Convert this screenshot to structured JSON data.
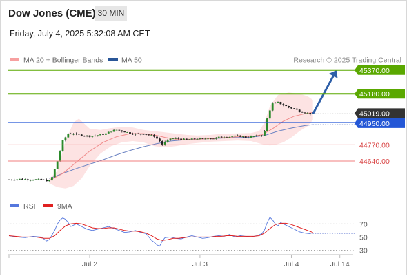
{
  "header": {
    "title": "Dow Jones (CME)",
    "interval": "30 MIN"
  },
  "datetime": "Friday, July 4, 2025 5:32:08 AM CET",
  "legend": {
    "ma20_bb": "MA 20 + Bollinger Bands",
    "ma50": "MA 50",
    "credit": "Research © 2025 Trading Central"
  },
  "colors": {
    "resistance": "#5aa800",
    "support": "#f07f7f",
    "pivot": "#2457d6",
    "current": "#333333",
    "bollinger_fill": "#fcd9d9",
    "ma20": "#f08a8a",
    "ma50": "#6a82c2",
    "rsi": "#5577dd",
    "rsi_ma": "#e02020",
    "arrow": "#2e5fa8"
  },
  "levels": [
    {
      "label": "45370.00",
      "value": 45370,
      "kind": "resistance"
    },
    {
      "label": "45180.00",
      "value": 45180,
      "kind": "resistance"
    },
    {
      "label": "45019.00",
      "value": 45019,
      "kind": "current"
    },
    {
      "label": "44950.00",
      "value": 44950,
      "kind": "pivot"
    },
    {
      "label": "44770.00",
      "value": 44770,
      "kind": "support"
    },
    {
      "label": "44640.00",
      "value": 44640,
      "kind": "support"
    }
  ],
  "rsi_legend": {
    "rsi": "RSI",
    "ma": "9MA"
  },
  "chart_data": {
    "type": "candlestick",
    "ylim": [
      44380,
      45380
    ],
    "xlim": [
      0,
      120
    ],
    "x_ticks": [
      {
        "label": "Jul 2",
        "x": 30
      },
      {
        "label": "Jul 3",
        "x": 71
      },
      {
        "label": "Jul 4",
        "x": 105
      },
      {
        "label": "Jul 14",
        "x": 123
      }
    ],
    "price_path": [
      [
        0,
        44490
      ],
      [
        4,
        44495
      ],
      [
        8,
        44492
      ],
      [
        12,
        44490
      ],
      [
        15,
        44480
      ],
      [
        16,
        44510
      ],
      [
        18,
        44640
      ],
      [
        19,
        44720
      ],
      [
        20,
        44800
      ],
      [
        21,
        44830
      ],
      [
        22,
        44860
      ],
      [
        24,
        44860
      ],
      [
        26,
        44850
      ],
      [
        28,
        44845
      ],
      [
        30,
        44840
      ],
      [
        32,
        44845
      ],
      [
        34,
        44850
      ],
      [
        36,
        44860
      ],
      [
        38,
        44880
      ],
      [
        40,
        44890
      ],
      [
        42,
        44880
      ],
      [
        44,
        44870
      ],
      [
        46,
        44860
      ],
      [
        48,
        44855
      ],
      [
        50,
        44860
      ],
      [
        52,
        44850
      ],
      [
        54,
        44840
      ],
      [
        56,
        44800
      ],
      [
        57,
        44770
      ],
      [
        58,
        44790
      ],
      [
        60,
        44820
      ],
      [
        63,
        44820
      ],
      [
        66,
        44810
      ],
      [
        68,
        44815
      ],
      [
        70,
        44820
      ],
      [
        72,
        44815
      ],
      [
        74,
        44825
      ],
      [
        76,
        44820
      ],
      [
        78,
        44830
      ],
      [
        80,
        44835
      ],
      [
        82,
        44835
      ],
      [
        84,
        44840
      ],
      [
        86,
        44840
      ],
      [
        88,
        44830
      ],
      [
        90,
        44835
      ],
      [
        92,
        44840
      ],
      [
        94,
        44850
      ],
      [
        95,
        44880
      ],
      [
        96,
        44980
      ],
      [
        97,
        45050
      ],
      [
        98,
        45100
      ],
      [
        100,
        45110
      ],
      [
        102,
        45090
      ],
      [
        104,
        45070
      ],
      [
        106,
        45060
      ],
      [
        108,
        45040
      ],
      [
        110,
        45030
      ],
      [
        112,
        45019
      ]
    ],
    "ma20": [
      [
        15,
        44485
      ],
      [
        20,
        44540
      ],
      [
        25,
        44630
      ],
      [
        30,
        44720
      ],
      [
        35,
        44790
      ],
      [
        40,
        44835
      ],
      [
        45,
        44860
      ],
      [
        50,
        44860
      ],
      [
        55,
        44845
      ],
      [
        58,
        44830
      ],
      [
        62,
        44815
      ],
      [
        66,
        44815
      ],
      [
        70,
        44815
      ],
      [
        75,
        44820
      ],
      [
        80,
        44828
      ],
      [
        85,
        44835
      ],
      [
        90,
        44838
      ],
      [
        94,
        44850
      ],
      [
        98,
        44900
      ],
      [
        102,
        44960
      ],
      [
        106,
        45000
      ],
      [
        110,
        45020
      ],
      [
        113,
        45030
      ]
    ],
    "ma50": [
      [
        15,
        44500
      ],
      [
        20,
        44540
      ],
      [
        25,
        44580
      ],
      [
        30,
        44615
      ],
      [
        35,
        44650
      ],
      [
        40,
        44690
      ],
      [
        45,
        44725
      ],
      [
        50,
        44755
      ],
      [
        55,
        44780
      ],
      [
        60,
        44800
      ],
      [
        65,
        44810
      ],
      [
        70,
        44815
      ],
      [
        75,
        44820
      ],
      [
        80,
        44825
      ],
      [
        85,
        44828
      ],
      [
        90,
        44832
      ],
      [
        95,
        44845
      ],
      [
        100,
        44880
      ],
      [
        105,
        44905
      ],
      [
        110,
        44925
      ],
      [
        113,
        44932
      ]
    ],
    "bollinger_upper": [
      [
        15,
        44500
      ],
      [
        18,
        44560
      ],
      [
        21,
        44800
      ],
      [
        24,
        44950
      ],
      [
        26,
        44980
      ],
      [
        28,
        44940
      ],
      [
        30,
        44900
      ],
      [
        34,
        44890
      ],
      [
        38,
        44905
      ],
      [
        42,
        44915
      ],
      [
        46,
        44910
      ],
      [
        50,
        44890
      ],
      [
        54,
        44880
      ],
      [
        58,
        44870
      ],
      [
        62,
        44860
      ],
      [
        66,
        44850
      ],
      [
        70,
        44845
      ],
      [
        75,
        44850
      ],
      [
        80,
        44860
      ],
      [
        85,
        44862
      ],
      [
        90,
        44865
      ],
      [
        93,
        44880
      ],
      [
        95,
        44950
      ],
      [
        97,
        45080
      ],
      [
        100,
        45170
      ],
      [
        104,
        45190
      ],
      [
        108,
        45180
      ],
      [
        111,
        45160
      ],
      [
        113,
        45130
      ]
    ],
    "bollinger_lower": [
      [
        113,
        44970
      ],
      [
        111,
        44920
      ],
      [
        108,
        44880
      ],
      [
        105,
        44830
      ],
      [
        102,
        44790
      ],
      [
        99,
        44770
      ],
      [
        97,
        44765
      ],
      [
        95,
        44770
      ],
      [
        90,
        44800
      ],
      [
        85,
        44805
      ],
      [
        80,
        44800
      ],
      [
        75,
        44795
      ],
      [
        70,
        44785
      ],
      [
        66,
        44775
      ],
      [
        62,
        44760
      ],
      [
        58,
        44750
      ],
      [
        54,
        44760
      ],
      [
        50,
        44790
      ],
      [
        46,
        44800
      ],
      [
        42,
        44790
      ],
      [
        38,
        44760
      ],
      [
        34,
        44700
      ],
      [
        30,
        44600
      ],
      [
        27,
        44500
      ],
      [
        24,
        44440
      ],
      [
        21,
        44420
      ],
      [
        18,
        44430
      ],
      [
        15,
        44460
      ]
    ],
    "projection": {
      "from": [
        113,
        45019
      ],
      "to": [
        121,
        45340
      ]
    },
    "rsi": {
      "ylim": [
        20,
        85
      ],
      "ticks": [
        70,
        50,
        30
      ],
      "rsi_values": [
        [
          0,
          52
        ],
        [
          3,
          50
        ],
        [
          6,
          49
        ],
        [
          9,
          51
        ],
        [
          12,
          50
        ],
        [
          14,
          44
        ],
        [
          15,
          46
        ],
        [
          16,
          53
        ],
        [
          17,
          60
        ],
        [
          18,
          70
        ],
        [
          19,
          76
        ],
        [
          20,
          79
        ],
        [
          21,
          77
        ],
        [
          22,
          72
        ],
        [
          23,
          66
        ],
        [
          25,
          70
        ],
        [
          27,
          66
        ],
        [
          29,
          62
        ],
        [
          31,
          60
        ],
        [
          33,
          62
        ],
        [
          35,
          64
        ],
        [
          37,
          66
        ],
        [
          39,
          63
        ],
        [
          41,
          60
        ],
        [
          43,
          57
        ],
        [
          45,
          58
        ],
        [
          47,
          60
        ],
        [
          49,
          57
        ],
        [
          51,
          55
        ],
        [
          52,
          50
        ],
        [
          53,
          45
        ],
        [
          54,
          42
        ],
        [
          55,
          38
        ],
        [
          56,
          36
        ],
        [
          57,
          44
        ],
        [
          58,
          49
        ],
        [
          60,
          50
        ],
        [
          62,
          48
        ],
        [
          64,
          47
        ],
        [
          66,
          50
        ],
        [
          68,
          52
        ],
        [
          70,
          50
        ],
        [
          72,
          48
        ],
        [
          74,
          49
        ],
        [
          76,
          51
        ],
        [
          78,
          52
        ],
        [
          80,
          51
        ],
        [
          82,
          54
        ],
        [
          84,
          50
        ],
        [
          86,
          52
        ],
        [
          88,
          51
        ],
        [
          90,
          50
        ],
        [
          92,
          52
        ],
        [
          94,
          55
        ],
        [
          95,
          61
        ],
        [
          96,
          72
        ],
        [
          97,
          80
        ],
        [
          98,
          76
        ],
        [
          99,
          70
        ],
        [
          100,
          67
        ],
        [
          101,
          72
        ],
        [
          102,
          70
        ],
        [
          104,
          66
        ],
        [
          106,
          62
        ],
        [
          108,
          58
        ],
        [
          110,
          56
        ],
        [
          112,
          55
        ]
      ],
      "ma_values": [
        [
          0,
          52
        ],
        [
          5,
          50
        ],
        [
          10,
          50
        ],
        [
          13,
          48
        ],
        [
          15,
          48
        ],
        [
          17,
          52
        ],
        [
          19,
          60
        ],
        [
          21,
          67
        ],
        [
          23,
          70
        ],
        [
          25,
          71
        ],
        [
          27,
          70
        ],
        [
          29,
          67
        ],
        [
          31,
          64
        ],
        [
          33,
          63
        ],
        [
          35,
          63
        ],
        [
          37,
          64
        ],
        [
          39,
          64
        ],
        [
          41,
          62
        ],
        [
          43,
          60
        ],
        [
          45,
          59
        ],
        [
          47,
          59
        ],
        [
          49,
          58
        ],
        [
          51,
          56
        ],
        [
          53,
          52
        ],
        [
          55,
          47
        ],
        [
          57,
          45
        ],
        [
          59,
          46
        ],
        [
          61,
          48
        ],
        [
          63,
          48
        ],
        [
          65,
          49
        ],
        [
          67,
          50
        ],
        [
          69,
          50
        ],
        [
          71,
          50
        ],
        [
          73,
          50
        ],
        [
          75,
          50
        ],
        [
          77,
          51
        ],
        [
          79,
          51
        ],
        [
          81,
          52
        ],
        [
          83,
          52
        ],
        [
          85,
          51
        ],
        [
          87,
          51
        ],
        [
          89,
          51
        ],
        [
          91,
          51
        ],
        [
          93,
          52
        ],
        [
          95,
          56
        ],
        [
          97,
          63
        ],
        [
          99,
          69
        ],
        [
          101,
          71
        ],
        [
          103,
          71
        ],
        [
          105,
          69
        ],
        [
          107,
          66
        ],
        [
          109,
          63
        ],
        [
          111,
          60
        ],
        [
          113,
          57
        ]
      ]
    }
  }
}
